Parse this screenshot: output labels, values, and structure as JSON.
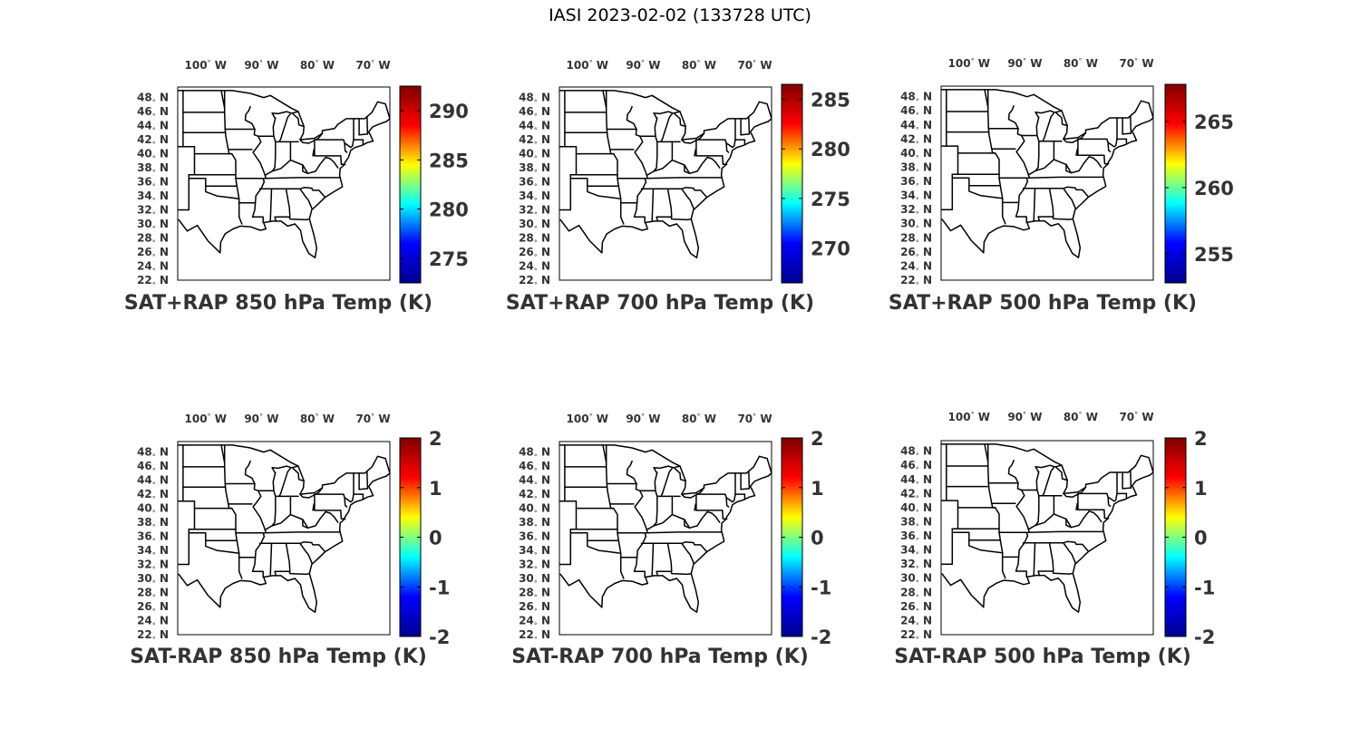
{
  "title": "IASI 2023-02-02 (133728 UTC)",
  "lon_ticks": [
    {
      "value": -100,
      "label": "100",
      "hemi": "W"
    },
    {
      "value": -90,
      "label": "90",
      "hemi": "W"
    },
    {
      "value": -80,
      "label": "80",
      "hemi": "W"
    },
    {
      "value": -70,
      "label": "70",
      "hemi": "W"
    }
  ],
  "lat_ticks": [
    {
      "value": 48,
      "label": "48",
      "hemi": "N"
    },
    {
      "value": 46,
      "label": "46",
      "hemi": "N"
    },
    {
      "value": 44,
      "label": "44",
      "hemi": "N"
    },
    {
      "value": 42,
      "label": "42",
      "hemi": "N"
    },
    {
      "value": 40,
      "label": "40",
      "hemi": "N"
    },
    {
      "value": 38,
      "label": "38",
      "hemi": "N"
    },
    {
      "value": 36,
      "label": "36",
      "hemi": "N"
    },
    {
      "value": 34,
      "label": "34",
      "hemi": "N"
    },
    {
      "value": 32,
      "label": "32",
      "hemi": "N"
    },
    {
      "value": 30,
      "label": "30",
      "hemi": "N"
    },
    {
      "value": 28,
      "label": "28",
      "hemi": "N"
    },
    {
      "value": 26,
      "label": "26",
      "hemi": "N"
    },
    {
      "value": 24,
      "label": "24",
      "hemi": "N"
    },
    {
      "value": 22,
      "label": "22",
      "hemi": "N"
    }
  ],
  "map_extent": {
    "lon_min": -105,
    "lon_max": -67,
    "lat_min": 22,
    "lat_max": 49.5
  },
  "colormap": "jet",
  "colormap_colors": [
    "#00008f",
    "#0000ff",
    "#00ffff",
    "#ffff00",
    "#ff0000",
    "#800000"
  ],
  "panels": [
    {
      "id": "sat-rap-sum-850",
      "title": "SAT+RAP 850 hPa Temp (K)",
      "clim": [
        272.5,
        292.5
      ],
      "cbar_ticks": [
        275,
        280,
        285,
        290
      ]
    },
    {
      "id": "sat-rap-sum-700",
      "title": "SAT+RAP 700 hPa Temp (K)",
      "clim": [
        266.5,
        286.5
      ],
      "cbar_ticks": [
        270,
        275,
        280,
        285
      ]
    },
    {
      "id": "sat-rap-sum-500",
      "title": "SAT+RAP 500 hPa Temp (K)",
      "clim": [
        252.8,
        267.8
      ],
      "cbar_ticks": [
        255,
        260,
        265
      ]
    },
    {
      "id": "sat-rap-diff-850",
      "title": "SAT-RAP 850 hPa Temp (K)",
      "clim": [
        -2,
        2
      ],
      "cbar_ticks": [
        -2,
        -1,
        0,
        1,
        2
      ]
    },
    {
      "id": "sat-rap-diff-700",
      "title": "SAT-RAP 700 hPa Temp (K)",
      "clim": [
        -2,
        2
      ],
      "cbar_ticks": [
        -2,
        -1,
        0,
        1,
        2
      ]
    },
    {
      "id": "sat-rap-diff-500",
      "title": "SAT-RAP 500 hPa Temp (K)",
      "clim": [
        -2,
        2
      ],
      "cbar_ticks": [
        -2,
        -1,
        0,
        1,
        2
      ]
    }
  ]
}
